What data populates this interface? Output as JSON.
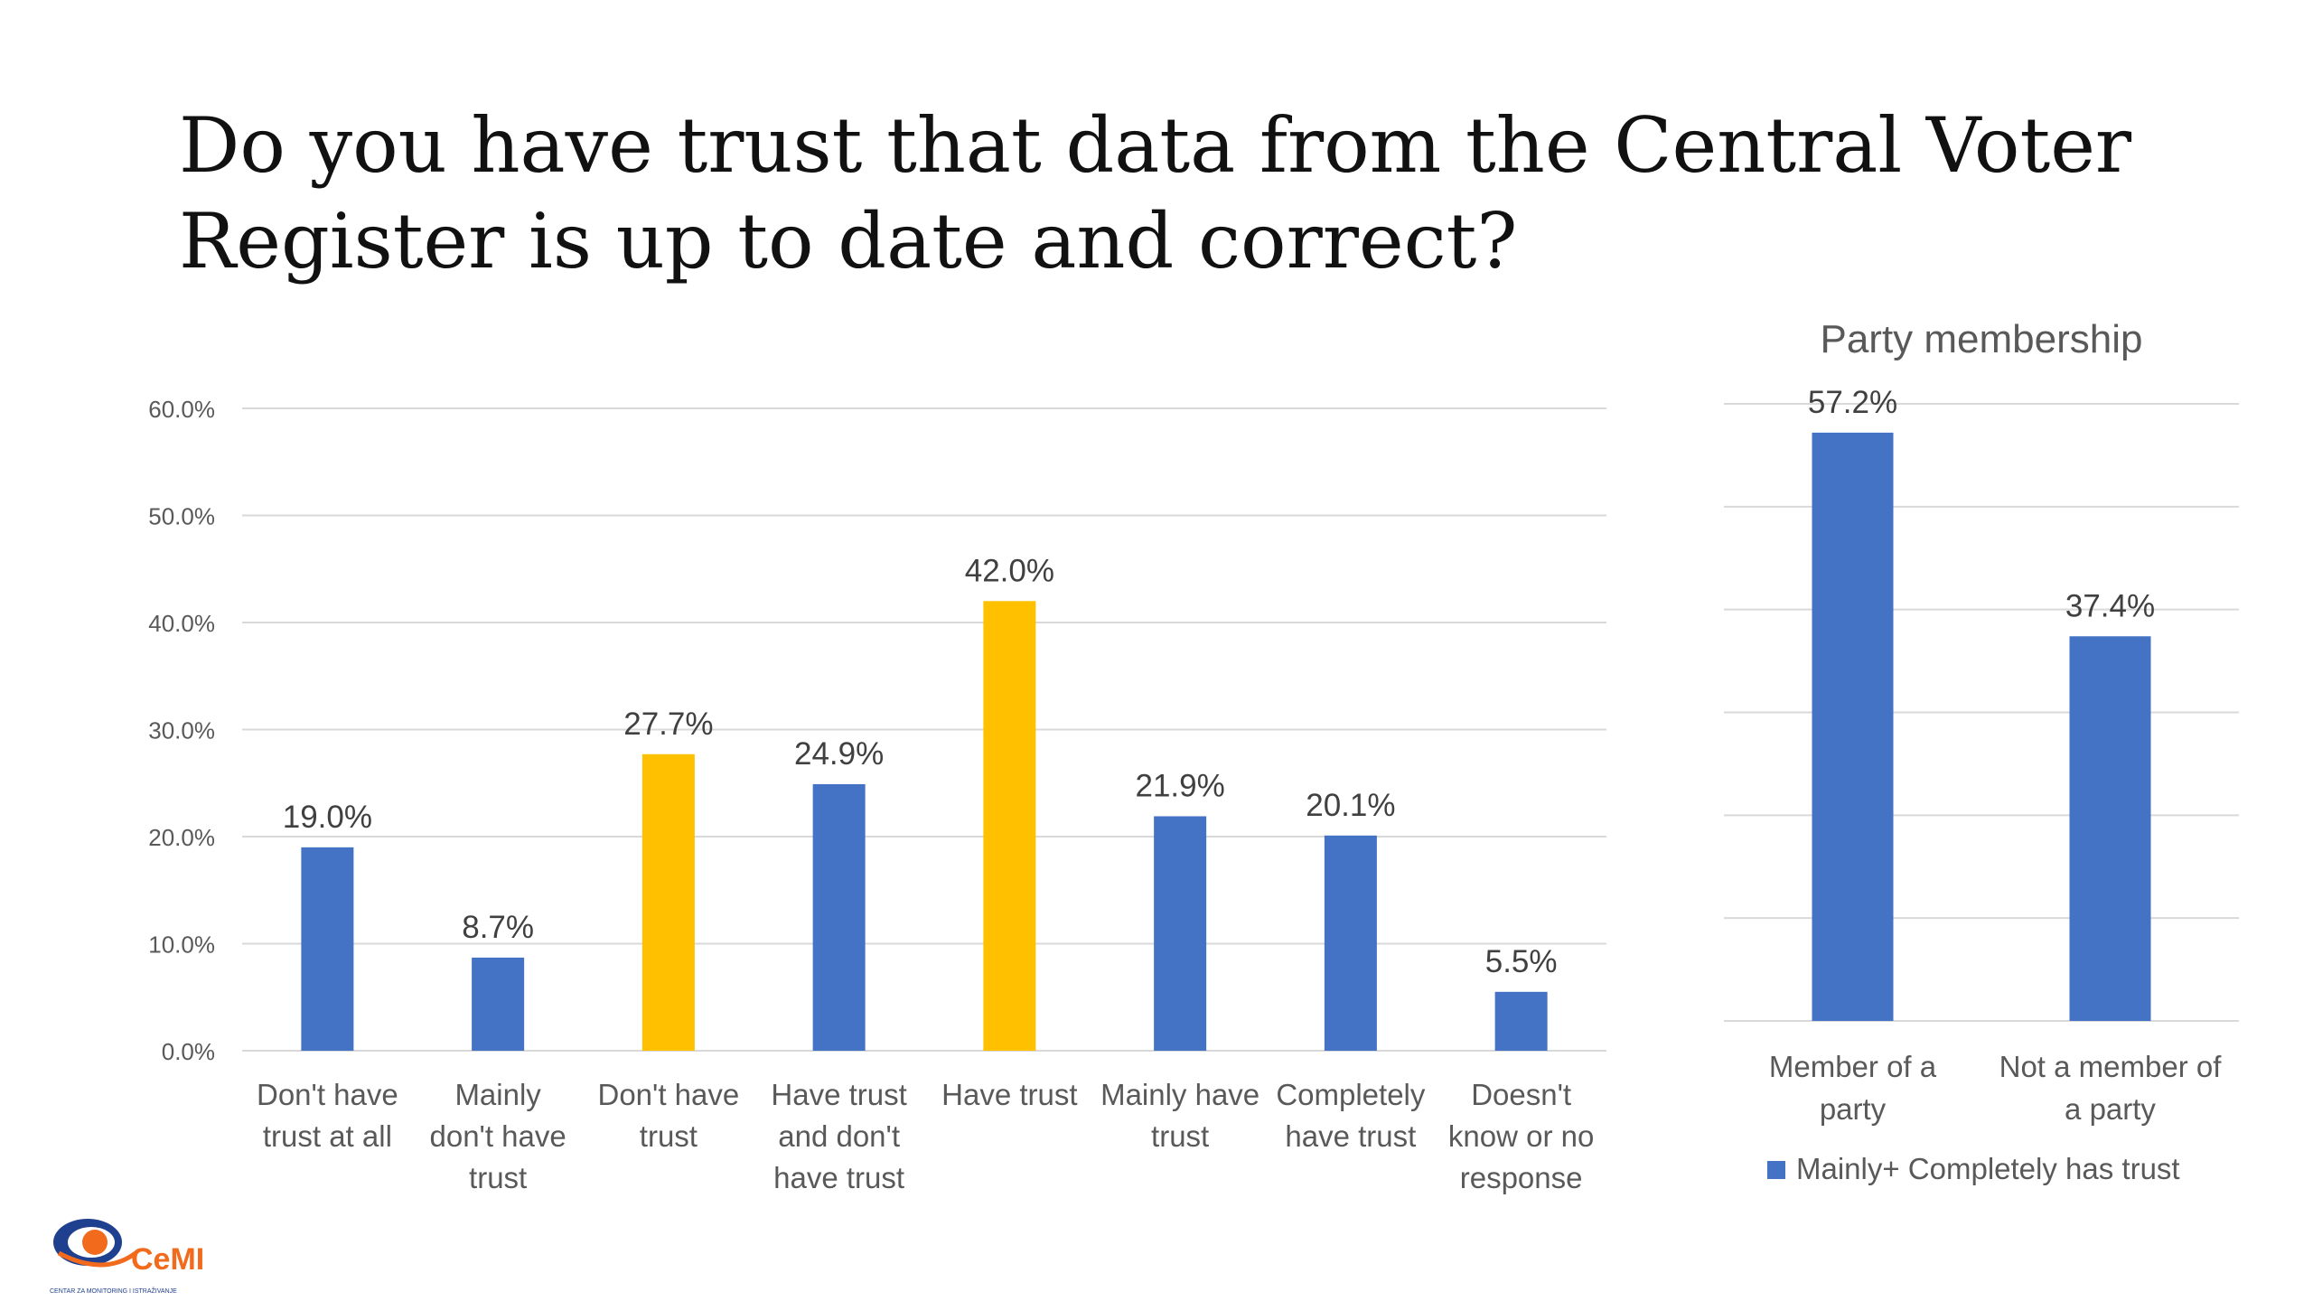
{
  "title": "Do you have trust that data from the Central Voter Register is up to date and correct?",
  "colors": {
    "blue": "#4472C4",
    "gold": "#FFC000",
    "grid": "#D9D9D9",
    "text": "#595959"
  },
  "logo": {
    "text": "CeMI",
    "subtitle": "CENTAR ZA MONITORING I ISTRAŽIVANJE"
  },
  "chart_data": [
    {
      "type": "bar",
      "title": "",
      "ylim": [
        0,
        60
      ],
      "yticks": [
        "0.0%",
        "10.0%",
        "20.0%",
        "30.0%",
        "40.0%",
        "50.0%",
        "60.0%"
      ],
      "grid": true,
      "categories": [
        [
          "Don't have",
          "trust at all"
        ],
        [
          "Mainly",
          "don't have",
          "trust"
        ],
        [
          "Don't have",
          "trust"
        ],
        [
          "Have trust",
          "and don't",
          "have trust"
        ],
        [
          "Have trust"
        ],
        [
          "Mainly have",
          "trust"
        ],
        [
          "Completely",
          "have trust"
        ],
        [
          "Doesn't",
          "know or no",
          "response"
        ]
      ],
      "values": [
        19.0,
        8.7,
        27.7,
        24.9,
        42.0,
        21.9,
        20.1,
        5.5
      ],
      "labels": [
        "19.0%",
        "8.7%",
        "27.7%",
        "24.9%",
        "42.0%",
        "21.9%",
        "20.1%",
        "5.5%"
      ],
      "bar_colors": [
        "blue",
        "blue",
        "gold",
        "blue",
        "gold",
        "blue",
        "blue",
        "blue"
      ]
    },
    {
      "type": "bar",
      "title": "Party membership",
      "ylim": [
        0,
        60
      ],
      "grid": true,
      "categories": [
        [
          "Member of a",
          "party"
        ],
        [
          "Not a member of",
          "a party"
        ]
      ],
      "series": [
        {
          "name": "Mainly+ Completely has trust",
          "values": [
            57.2,
            37.4
          ]
        }
      ],
      "labels": [
        "57.2%",
        "37.4%"
      ],
      "legend": "bottom"
    }
  ]
}
